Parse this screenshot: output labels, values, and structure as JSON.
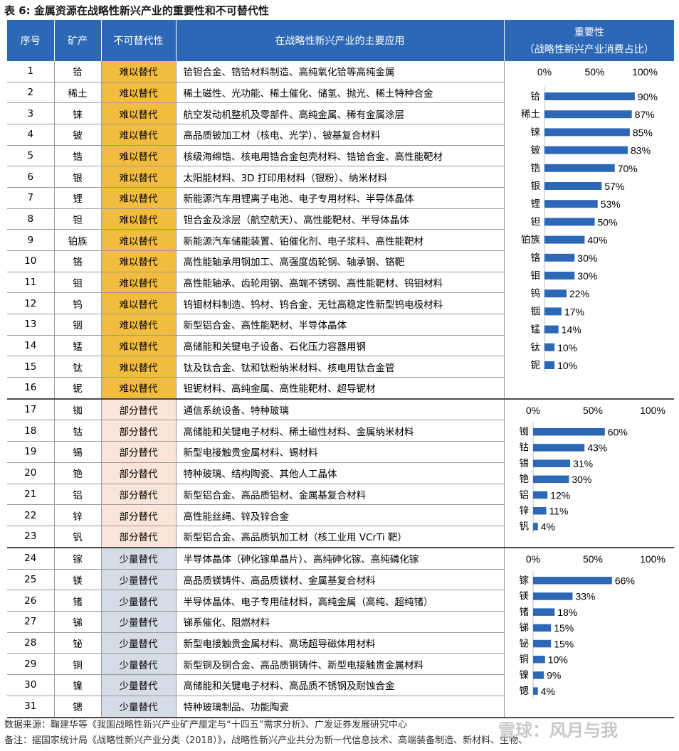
{
  "title": "表 6: 金属资源在战略性新兴产业的重要性和不可替代性",
  "headers": {
    "no": "序号",
    "mineral": "矿产",
    "irreplaceability": "不可替代性",
    "application": "在战略性新兴产业的主要应用",
    "importance_line1": "重要性",
    "importance_line2": "（战略性新兴产业消费占比）"
  },
  "category_colors": {
    "难以替代": "#f2bd3e",
    "部分替代": "#fbe4d8",
    "少量替代": "#d6dce5"
  },
  "bar_color": "#2c68b6",
  "rows": [
    {
      "no": "1",
      "mineral": "铪",
      "level": "难以替代",
      "app": "铪钽合金、锆铪材料制造、高纯氧化铪等高纯金属"
    },
    {
      "no": "2",
      "mineral": "稀土",
      "level": "难以替代",
      "app": "稀土磁性、光功能、稀土催化、储氢、抛光、稀土特种合金"
    },
    {
      "no": "3",
      "mineral": "铼",
      "level": "难以替代",
      "app": "航空发动机整机及零部件、高纯金属、稀有金属涂层"
    },
    {
      "no": "4",
      "mineral": "铍",
      "level": "难以替代",
      "app": "高品质铍加工材（核电、光学）、铍基复合材料"
    },
    {
      "no": "5",
      "mineral": "锆",
      "level": "难以替代",
      "app": "核级海绵锆、核电用锆合金包壳材料、锆铪合金、高性能靶材"
    },
    {
      "no": "6",
      "mineral": "银",
      "level": "难以替代",
      "app": "太阳能材料、3D 打印用材料（银粉）、纳米材料"
    },
    {
      "no": "7",
      "mineral": "锂",
      "level": "难以替代",
      "app": "新能源汽车用锂离子电池、电子专用材料、半导体晶体"
    },
    {
      "no": "8",
      "mineral": "钽",
      "level": "难以替代",
      "app": "钽合金及涂层（航空航天）、高性能靶材、半导体晶体"
    },
    {
      "no": "9",
      "mineral": "铂族",
      "level": "难以替代",
      "app": "新能源汽车储能装置、铂催化剂、电子浆料、高性能靶材"
    },
    {
      "no": "10",
      "mineral": "铬",
      "level": "难以替代",
      "app": "高性能轴承用钢加工、高强度齿轮钢、轴承钢、铬靶"
    },
    {
      "no": "11",
      "mineral": "钼",
      "level": "难以替代",
      "app": "高性能轴承、齿轮用钢、高端不锈钢、高性能靶材、钨钼材料"
    },
    {
      "no": "12",
      "mineral": "钨",
      "level": "难以替代",
      "app": "钨钼材料制造、钨材、钨合金、无钍高稳定性新型钨电极材料"
    },
    {
      "no": "13",
      "mineral": "铟",
      "level": "难以替代",
      "app": "新型铝合金、高性能靶材、半导体晶体"
    },
    {
      "no": "14",
      "mineral": "锰",
      "level": "难以替代",
      "app": "高储能和关键电子设备、石化压力容器用钢"
    },
    {
      "no": "15",
      "mineral": "钛",
      "level": "难以替代",
      "app": "钛及钛合金、钛和钛粉纳米材料、核电用钛合金管"
    },
    {
      "no": "16",
      "mineral": "铌",
      "level": "难以替代",
      "app": "钽铌材料、高纯金属、高性能靶材、超导铌材"
    },
    {
      "no": "17",
      "mineral": "铷",
      "level": "部分替代",
      "app": "通信系统设备、特种玻璃"
    },
    {
      "no": "18",
      "mineral": "钴",
      "level": "部分替代",
      "app": "高储能和关键电子材料、稀土磁性材料、金属纳米材料"
    },
    {
      "no": "19",
      "mineral": "锡",
      "level": "部分替代",
      "app": "新型电接触贵金属材料、锡材料"
    },
    {
      "no": "20",
      "mineral": "铯",
      "level": "部分替代",
      "app": "特种玻璃、结构陶瓷、其他人工晶体"
    },
    {
      "no": "21",
      "mineral": "铝",
      "level": "部分替代",
      "app": "新型铝合金、高品质铝材、金属基复合材料"
    },
    {
      "no": "22",
      "mineral": "锌",
      "level": "部分替代",
      "app": "高性能丝绳、锌及锌合金"
    },
    {
      "no": "23",
      "mineral": "钒",
      "level": "部分替代",
      "app": "新型铝合金、高品质钒加工材（核工业用 VCrTi 靶）"
    },
    {
      "no": "24",
      "mineral": "镓",
      "level": "少量替代",
      "app": "半导体晶体（砷化镓单晶片）、高纯砷化镓、高纯磷化镓"
    },
    {
      "no": "25",
      "mineral": "镁",
      "level": "少量替代",
      "app": "高品质镁铸件、高品质镁材、金属基复合材料"
    },
    {
      "no": "26",
      "mineral": "锗",
      "level": "少量替代",
      "app": "半导体晶体、电子专用硅材料，高纯金属（高纯、超纯锗）"
    },
    {
      "no": "27",
      "mineral": "锑",
      "level": "少量替代",
      "app": "锑系催化、阻燃材料"
    },
    {
      "no": "28",
      "mineral": "铋",
      "level": "少量替代",
      "app": "新型电接触贵金属材料、高场超导磁体用材料"
    },
    {
      "no": "29",
      "mineral": "铜",
      "level": "少量替代",
      "app": "新型铜及铜合金、高品质铜铸件、新型电接触贵金属材料"
    },
    {
      "no": "30",
      "mineral": "镍",
      "level": "少量替代",
      "app": "高储能和关键电子材料、高品质不锈钢及耐蚀合金"
    },
    {
      "no": "31",
      "mineral": "锶",
      "level": "少量替代",
      "app": "特种玻璃制品、功能陶瓷"
    }
  ],
  "chart_data": [
    {
      "type": "bar",
      "orientation": "horizontal",
      "categories": [
        "铪",
        "稀土",
        "铼",
        "铍",
        "锆",
        "银",
        "锂",
        "钽",
        "铂族",
        "铬",
        "钼",
        "钨",
        "铟",
        "锰",
        "钛",
        "铌"
      ],
      "values": [
        90,
        87,
        85,
        83,
        70,
        57,
        53,
        50,
        40,
        30,
        30,
        22,
        17,
        14,
        10,
        10
      ],
      "value_labels": [
        "90%",
        "87%",
        "85%",
        "83%",
        "70%",
        "57%",
        "53%",
        "50%",
        "40%",
        "30%",
        "30%",
        "22%",
        "17%",
        "14%",
        "10%",
        "10%"
      ],
      "xlim": [
        0,
        100
      ],
      "ticks": [
        "0%",
        "50%",
        "100%"
      ],
      "axis_position": "top"
    },
    {
      "type": "bar",
      "orientation": "horizontal",
      "categories": [
        "铷",
        "钴",
        "锡",
        "铯",
        "铝",
        "锌",
        "钒"
      ],
      "values": [
        60,
        43,
        31,
        30,
        12,
        11,
        4
      ],
      "value_labels": [
        "60%",
        "43%",
        "31%",
        "30%",
        "12%",
        "11%",
        "4%"
      ],
      "xlim": [
        0,
        100
      ],
      "ticks": [
        "0%",
        "50%",
        "100%"
      ],
      "axis_position": "top"
    },
    {
      "type": "bar",
      "orientation": "horizontal",
      "categories": [
        "镓",
        "镁",
        "锗",
        "锑",
        "铋",
        "铜",
        "镍",
        "锶"
      ],
      "values": [
        66,
        33,
        18,
        15,
        15,
        10,
        9,
        4
      ],
      "value_labels": [
        "66%",
        "33%",
        "18%",
        "15%",
        "15%",
        "10%",
        "9%",
        "4%"
      ],
      "xlim": [
        0,
        100
      ],
      "ticks": [
        "0%",
        "50%",
        "100%"
      ],
      "axis_position": "top"
    }
  ],
  "footer": {
    "source": "数据来源：鞠建华等《我国战略性新兴产业矿产厘定与“十四五”需求分析》、广发证券发展研究中心",
    "note": "备注：据国家统计局《战略性新兴产业分类（2018）》，战略性新兴产业共分为新一代信息技术、高端装备制造、新材料、生物、"
  },
  "watermark": "雪球：风月与我"
}
